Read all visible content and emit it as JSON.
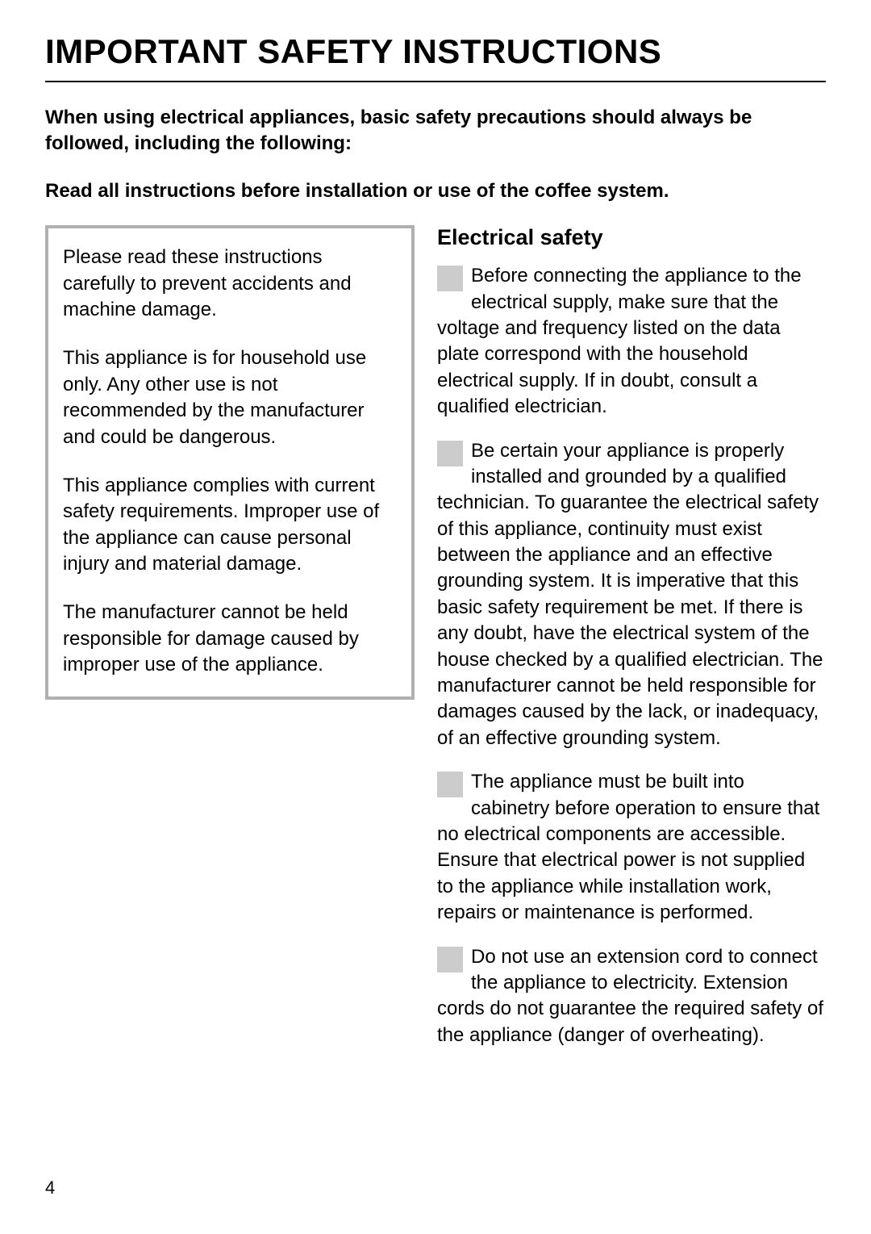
{
  "title": "IMPORTANT SAFETY INSTRUCTIONS",
  "intro1": "When using electrical appliances, basic safety precautions should always be followed, including the following:",
  "intro2": "Read all instructions before installation or use of the coffee system.",
  "box": {
    "p1": "Please read these instructions carefully to prevent accidents and machine damage.",
    "p2": "This appliance is for household use only. Any other use is not recommended by the manufacturer and could be dangerous.",
    "p3": "This appliance complies with current safety requirements. Improper use of the appliance can cause personal injury and material damage.",
    "p4": "The manufacturer cannot be held responsible for damage caused by improper use of the appliance."
  },
  "right": {
    "heading": "Electrical safety",
    "b1": "Before connecting the appliance to the electrical supply, make sure that the voltage and frequency listed on the data plate correspond with the household electrical supply. If in doubt, consult a qualified electrician.",
    "b2": "Be certain your appliance is properly installed and grounded by a qualified technician.\nTo guarantee the electrical safety of this appliance, continuity must exist between the appliance and an effective grounding system. It is imperative that this basic safety requirement be met. If there is any doubt, have the electrical system of the house checked by a qualified electrician. The manufacturer cannot be held responsible for damages caused by the lack, or inadequacy, of an effective grounding system.",
    "b3": "The appliance must be built into cabinetry before operation to ensure that no electrical components are accessible. Ensure that electrical power is not supplied to the appliance while installation work, repairs or maintenance is performed.",
    "b4": "Do not use an extension cord to connect the appliance to electricity. Extension cords do not guarantee the required safety of the appliance (danger of overheating)."
  },
  "pageNumber": "4",
  "colors": {
    "text": "#000000",
    "bg": "#ffffff",
    "box_border": "#b0b0b0",
    "bullet_fill": "#cccccc"
  }
}
